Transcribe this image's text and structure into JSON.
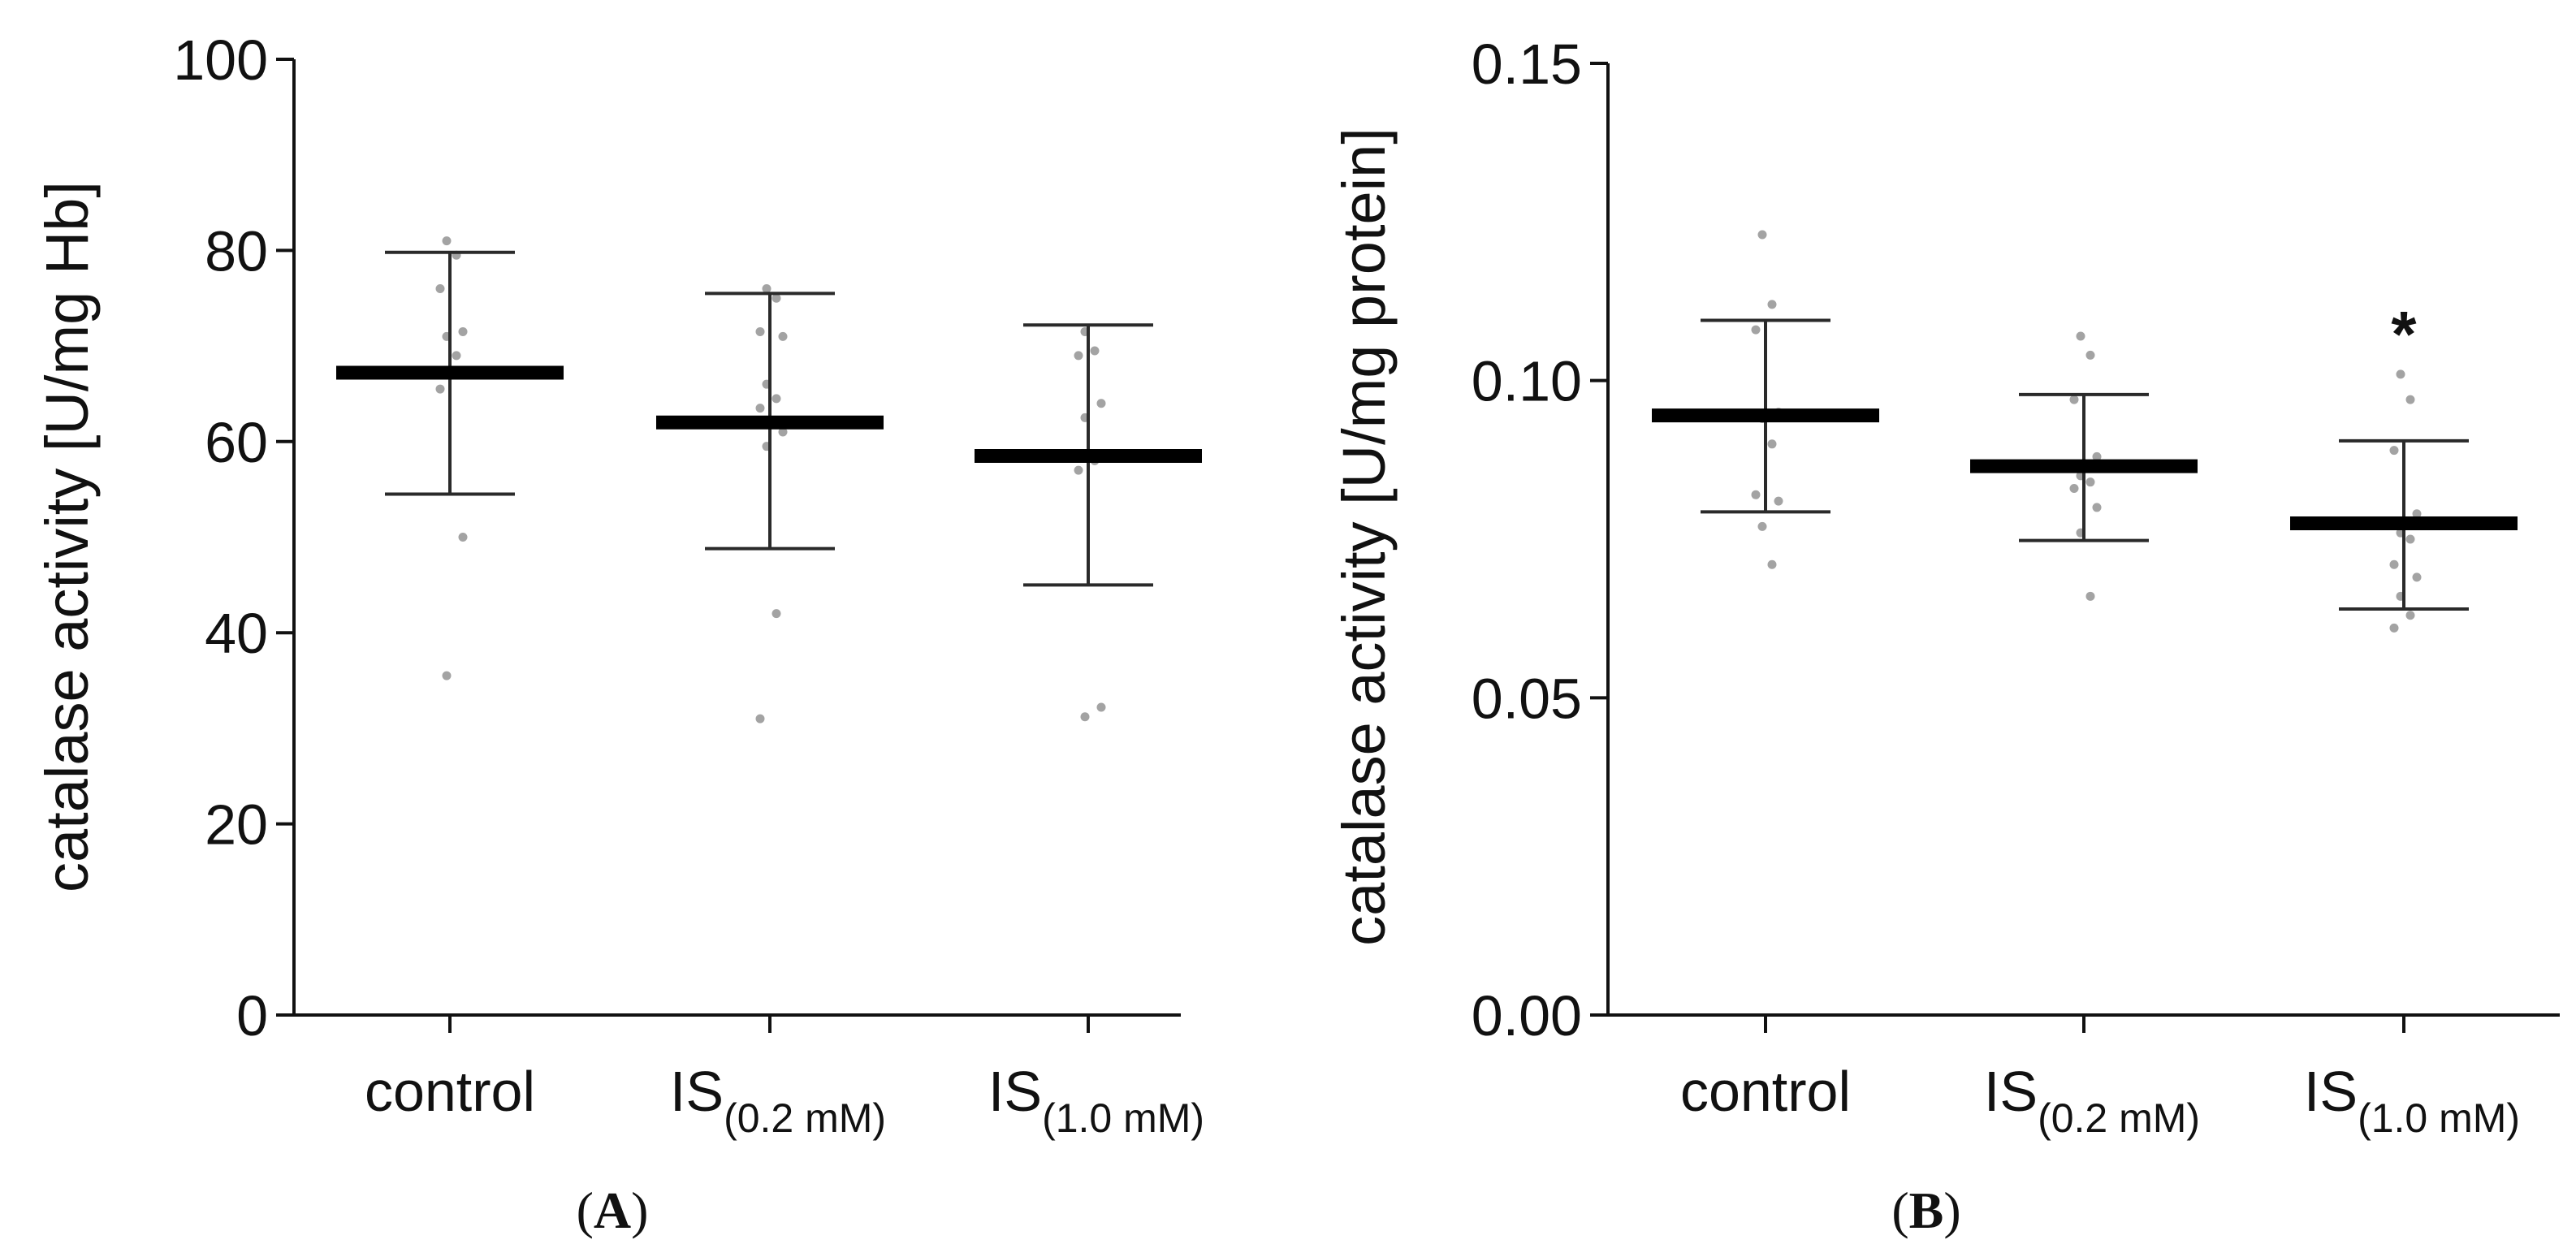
{
  "chart_data": [
    {
      "type": "scatter",
      "panel": "A",
      "panel_label": {
        "open": "(",
        "letter": "A",
        "close": ")"
      },
      "ylabel": "catalase activity [U/mg Hb]",
      "ylim": [
        0,
        100
      ],
      "yticks": [
        0,
        20,
        40,
        60,
        80,
        100
      ],
      "ytick_labels": [
        "0",
        "20",
        "40",
        "60",
        "80",
        "100"
      ],
      "categories": [
        {
          "base": "control",
          "sub": ""
        },
        {
          "base": "IS",
          "sub": "(0.2 mM)"
        },
        {
          "base": "IS",
          "sub": "(1.0 mM)"
        }
      ],
      "groups": [
        {
          "mean": 67.2,
          "sd_low": 54.5,
          "sd_high": 79.8,
          "points": [
            81.0,
            79.5,
            76.0,
            71.5,
            71.0,
            69.0,
            65.5,
            50.0,
            35.5
          ]
        },
        {
          "mean": 62.0,
          "sd_low": 48.8,
          "sd_high": 75.5,
          "points": [
            76.0,
            75.0,
            71.5,
            71.0,
            66.0,
            64.5,
            63.5,
            61.0,
            59.5,
            42.0,
            31.0
          ]
        },
        {
          "mean": 58.5,
          "sd_low": 45.0,
          "sd_high": 72.2,
          "points": [
            71.5,
            69.5,
            69.0,
            64.0,
            62.5,
            58.0,
            57.0,
            32.2,
            31.2
          ]
        }
      ],
      "annotations": []
    },
    {
      "type": "scatter",
      "panel": "B",
      "panel_label": {
        "open": "(",
        "letter": "B",
        "close": ")"
      },
      "ylabel": "catalase activity [U/mg protein]",
      "ylim": [
        0,
        0.15
      ],
      "yticks": [
        0,
        0.05,
        0.1,
        0.15
      ],
      "ytick_labels": [
        "0.00",
        "0.05",
        "0.10",
        "0.15"
      ],
      "categories": [
        {
          "base": "control",
          "sub": ""
        },
        {
          "base": "IS",
          "sub": "(0.2 mM)"
        },
        {
          "base": "IS",
          "sub": "(1.0 mM)"
        }
      ],
      "groups": [
        {
          "mean": 0.0945,
          "sd_low": 0.0793,
          "sd_high": 0.1095,
          "points": [
            0.123,
            0.112,
            0.108,
            0.095,
            0.094,
            0.09,
            0.082,
            0.081,
            0.077,
            0.071
          ]
        },
        {
          "mean": 0.0865,
          "sd_low": 0.0748,
          "sd_high": 0.0978,
          "points": [
            0.107,
            0.104,
            0.097,
            0.088,
            0.085,
            0.084,
            0.083,
            0.08,
            0.076,
            0.066
          ]
        },
        {
          "mean": 0.0775,
          "sd_low": 0.064,
          "sd_high": 0.0905,
          "points": [
            0.101,
            0.097,
            0.089,
            0.079,
            0.076,
            0.075,
            0.071,
            0.069,
            0.066,
            0.063,
            0.061
          ]
        }
      ],
      "annotations": [
        {
          "category_index": 2,
          "text": "*"
        }
      ]
    }
  ]
}
